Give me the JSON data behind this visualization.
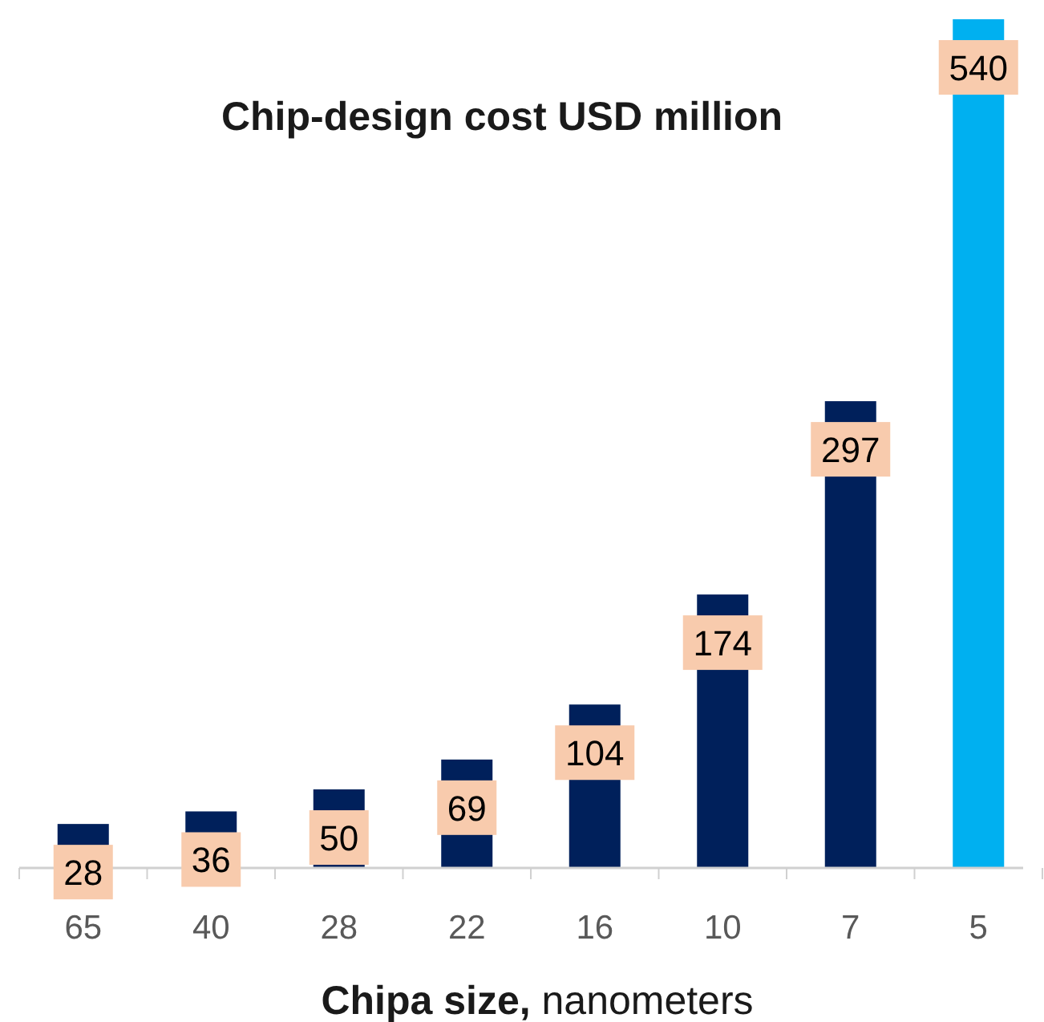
{
  "chart_data": {
    "type": "bar",
    "title": "Chip-design cost USD million",
    "xlabel": "Chipa size, nanometers",
    "categories": [
      "65",
      "40",
      "28",
      "22",
      "16",
      "10",
      "7",
      "5"
    ],
    "values": [
      28,
      36,
      50,
      69,
      104,
      174,
      297,
      540
    ],
    "colors": [
      "#00205b",
      "#00205b",
      "#00205b",
      "#00205b",
      "#00205b",
      "#00205b",
      "#00205b",
      "#00b0f0"
    ],
    "data_labels": true
  }
}
